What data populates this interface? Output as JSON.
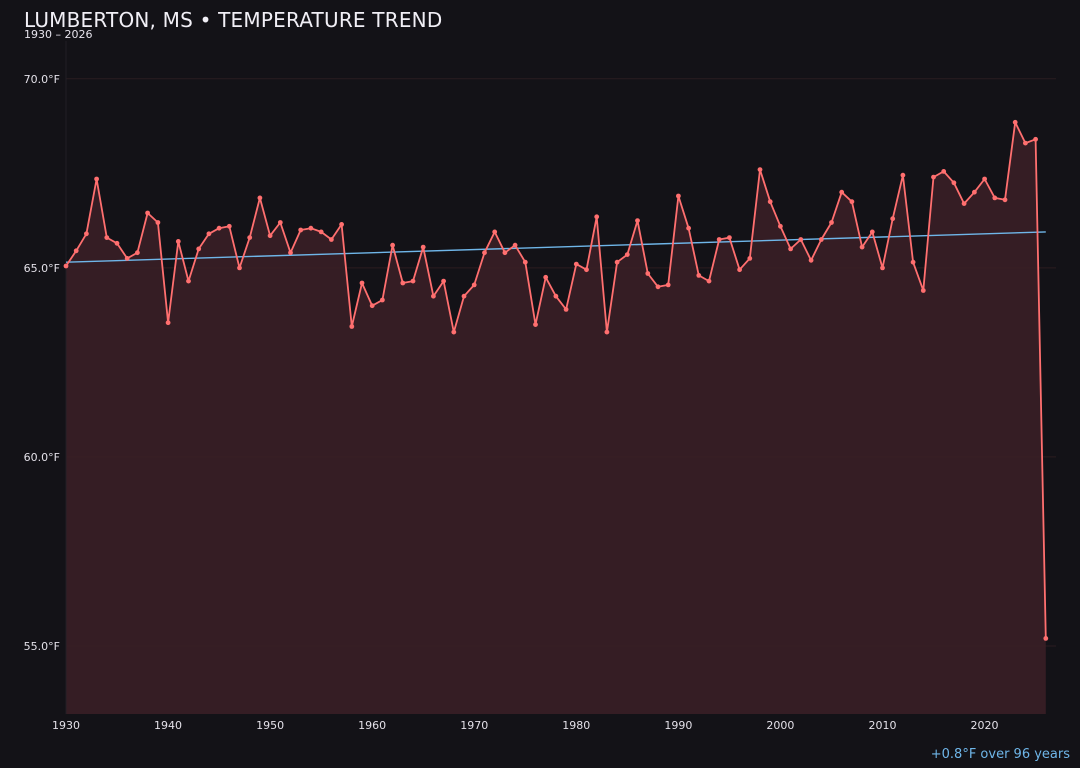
{
  "chart_data": {
    "type": "line",
    "title": "LUMBERTON, MS • TEMPERATURE TREND",
    "subtitle": "1930 – 2026",
    "xlabel": "",
    "ylabel": "",
    "xlim": [
      1930,
      2027
    ],
    "ylim": [
      53.2,
      71
    ],
    "y_ticks": [
      70,
      65,
      60,
      55
    ],
    "y_tick_labels": [
      "70.0°F",
      "65.0°F",
      "60.0°F",
      "55.0°F"
    ],
    "x_ticks": [
      1930,
      1940,
      1950,
      1960,
      1970,
      1980,
      1990,
      2000,
      2010,
      2020
    ],
    "x_tick_labels": [
      "1930",
      "1940",
      "1950",
      "1960",
      "1970",
      "1980",
      "1990",
      "2000",
      "2010",
      "2020"
    ],
    "grid": true,
    "legend": "none",
    "series": [
      {
        "x": [
          1930,
          1931,
          1932,
          1933,
          1934,
          1935,
          1936,
          1937,
          1938,
          1939,
          1940,
          1941,
          1942,
          1943,
          1944,
          1945,
          1946,
          1947,
          1948,
          1949,
          1950,
          1951,
          1952,
          1953,
          1954,
          1955,
          1956,
          1957,
          1958,
          1959,
          1960,
          1961,
          1962,
          1963,
          1964,
          1965,
          1966,
          1967,
          1968,
          1969,
          1970,
          1971,
          1972,
          1973,
          1974,
          1975,
          1976,
          1977,
          1978,
          1979,
          1980,
          1981,
          1982,
          1983,
          1984,
          1985,
          1986,
          1987,
          1988,
          1989,
          1990,
          1991,
          1992,
          1993,
          1994,
          1995,
          1996,
          1997,
          1998,
          1999,
          2000,
          2001,
          2002,
          2003,
          2004,
          2005,
          2006,
          2007,
          2008,
          2009,
          2010,
          2011,
          2012,
          2013,
          2014,
          2015,
          2016,
          2017,
          2018,
          2019,
          2020,
          2021,
          2022,
          2023,
          2024,
          2025,
          2026
        ],
        "values": [
          65.05,
          65.45,
          65.9,
          67.35,
          65.8,
          65.65,
          65.25,
          65.4,
          66.45,
          66.2,
          63.55,
          65.7,
          64.65,
          65.5,
          65.9,
          66.05,
          66.1,
          65.0,
          65.8,
          66.85,
          65.85,
          66.2,
          65.4,
          66.0,
          66.05,
          65.95,
          65.75,
          66.15,
          63.45,
          64.6,
          64.0,
          64.15,
          65.6,
          64.6,
          64.65,
          65.55,
          64.25,
          64.65,
          63.3,
          64.25,
          64.55,
          65.4,
          65.95,
          65.4,
          65.6,
          65.15,
          63.5,
          64.75,
          64.25,
          63.9,
          65.1,
          64.95,
          66.35,
          63.3,
          65.15,
          65.35,
          66.25,
          64.85,
          64.5,
          64.55,
          66.9,
          66.05,
          64.8,
          64.65,
          65.75,
          65.8,
          64.95,
          65.25,
          67.6,
          66.75,
          66.1,
          65.5,
          65.75,
          65.2,
          65.75,
          66.2,
          67.0,
          66.75,
          65.55,
          65.95,
          65.0,
          66.3,
          67.45,
          65.15,
          64.4,
          67.4,
          67.55,
          67.25,
          66.7,
          67.0,
          67.35,
          66.85,
          66.8,
          68.85,
          68.3,
          68.4,
          55.2
        ]
      },
      {
        "x": [
          1930,
          2026
        ],
        "values": [
          65.15,
          65.95
        ]
      }
    ],
    "colors": {
      "line": "#ff6f6f",
      "fill": "#3a1f26",
      "trend": "#6fb6e9",
      "grid": "#2b1c20",
      "background": "#131217"
    },
    "annotation": "+0.8°F over 96 years"
  }
}
